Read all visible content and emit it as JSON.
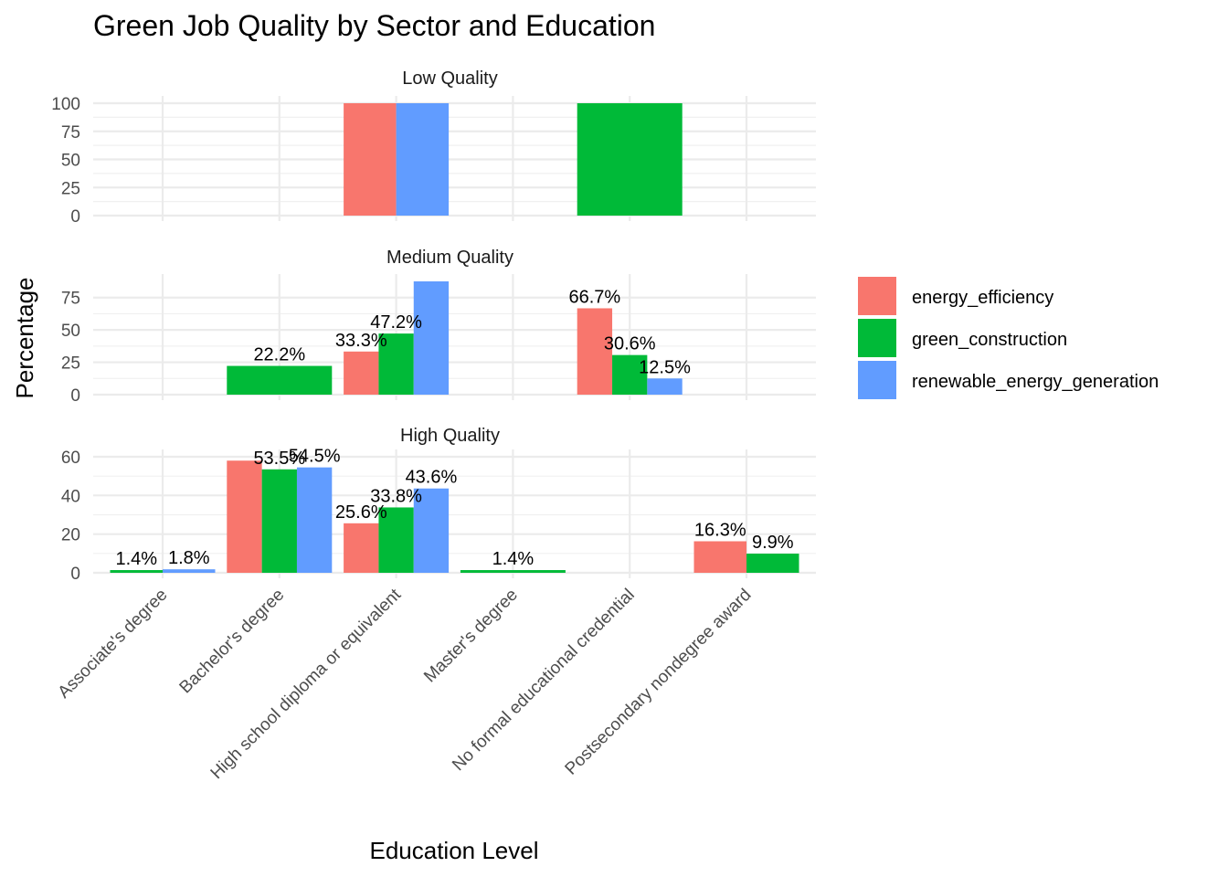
{
  "chart_data": {
    "type": "bar",
    "title": "Green Job Quality by Sector and Education",
    "xlabel": "Education Level",
    "ylabel": "Percentage",
    "categories": [
      "Associate's degree",
      "Bachelor's degree",
      "High school diploma or equivalent",
      "Master's degree",
      "No formal educational credential",
      "Postsecondary nondegree award"
    ],
    "series_colors": {
      "energy_efficiency": "#F8766D",
      "green_construction": "#00BA38",
      "renewable_energy_generation": "#619CFF"
    },
    "legend": {
      "position": "right",
      "entries": [
        "energy_efficiency",
        "green_construction",
        "renewable_energy_generation"
      ]
    },
    "grid": true,
    "panels": [
      {
        "name": "Low Quality",
        "ylim": [
          0,
          100
        ],
        "yticks": [
          0,
          25,
          50,
          75,
          100
        ],
        "bars": [
          {
            "category": 2,
            "series": [
              "energy_efficiency",
              "renewable_energy_generation"
            ],
            "values": [
              100,
              100
            ],
            "labels": [
              "",
              ""
            ]
          },
          {
            "category": 4,
            "series": [
              "green_construction"
            ],
            "values": [
              100
            ],
            "labels": [
              ""
            ]
          }
        ]
      },
      {
        "name": "Medium Quality",
        "ylim": [
          0,
          87.5
        ],
        "yticks": [
          0,
          25,
          50,
          75
        ],
        "bars": [
          {
            "category": 1,
            "series": [
              "green_construction"
            ],
            "values": [
              22.2
            ],
            "labels": [
              "22.2%"
            ]
          },
          {
            "category": 2,
            "series": [
              "energy_efficiency",
              "green_construction",
              "renewable_energy_generation"
            ],
            "values": [
              33.3,
              47.2,
              87.5
            ],
            "labels": [
              "33.3%",
              "47.2%",
              ""
            ]
          },
          {
            "category": 4,
            "series": [
              "energy_efficiency",
              "green_construction",
              "renewable_energy_generation"
            ],
            "values": [
              66.7,
              30.6,
              12.5
            ],
            "labels": [
              "66.7%",
              "30.6%",
              "12.5%"
            ]
          }
        ]
      },
      {
        "name": "High Quality",
        "ylim": [
          0,
          60
        ],
        "yticks": [
          0,
          20,
          40,
          60
        ],
        "bars": [
          {
            "category": 0,
            "series": [
              "green_construction",
              "renewable_energy_generation"
            ],
            "values": [
              1.4,
              1.8
            ],
            "labels": [
              "1.4%",
              "1.8%"
            ]
          },
          {
            "category": 1,
            "series": [
              "energy_efficiency",
              "green_construction",
              "renewable_energy_generation"
            ],
            "values": [
              58,
              53.5,
              54.5
            ],
            "labels": [
              "",
              "53.5%",
              "54.5%"
            ]
          },
          {
            "category": 2,
            "series": [
              "energy_efficiency",
              "green_construction",
              "renewable_energy_generation"
            ],
            "values": [
              25.6,
              33.8,
              43.6
            ],
            "labels": [
              "25.6%",
              "33.8%",
              "43.6%"
            ]
          },
          {
            "category": 3,
            "series": [
              "green_construction"
            ],
            "values": [
              1.4
            ],
            "labels": [
              "1.4%"
            ]
          },
          {
            "category": 5,
            "series": [
              "energy_efficiency",
              "green_construction"
            ],
            "values": [
              16.3,
              9.9
            ],
            "labels": [
              "16.3%",
              "9.9%"
            ]
          }
        ]
      }
    ]
  }
}
